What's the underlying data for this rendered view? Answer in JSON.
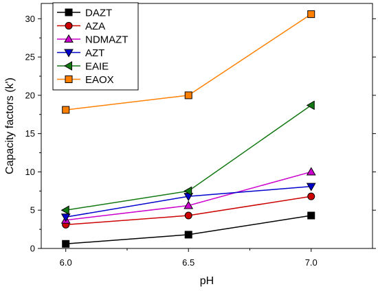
{
  "chart_data": {
    "type": "line",
    "title": "",
    "xlabel": "pH",
    "ylabel": "Capacity factors (k')",
    "x": [
      6.0,
      6.5,
      7.0
    ],
    "x_tick_labels": [
      "6.0",
      "6.5",
      "7.0"
    ],
    "xlim": [
      5.9,
      7.25
    ],
    "ylim": [
      0,
      32
    ],
    "y_ticks": [
      0,
      5,
      10,
      15,
      20,
      25,
      30
    ],
    "y_tick_labels": [
      "0",
      "5",
      "10",
      "15",
      "20",
      "25",
      "30"
    ],
    "grid": false,
    "legend_position": "top-left",
    "series": [
      {
        "name": "DAZT",
        "values": [
          0.6,
          1.8,
          4.3
        ],
        "color": "#000000",
        "marker": "square"
      },
      {
        "name": "AZA",
        "values": [
          3.1,
          4.3,
          6.8
        ],
        "color": "#cc0000",
        "marker": "circle"
      },
      {
        "name": "NDMAZT",
        "values": [
          3.7,
          5.6,
          10.0
        ],
        "color": "#cc00cc",
        "marker": "triangle-up"
      },
      {
        "name": "AZT",
        "values": [
          4.1,
          6.8,
          8.1
        ],
        "color": "#0000cc",
        "marker": "triangle-down"
      },
      {
        "name": "EAIE",
        "values": [
          5.0,
          7.5,
          18.7
        ],
        "color": "#117711",
        "marker": "triangle-left"
      },
      {
        "name": "EAOX",
        "values": [
          18.1,
          20.0,
          30.6
        ],
        "color": "#ff8000",
        "marker": "square"
      }
    ]
  }
}
